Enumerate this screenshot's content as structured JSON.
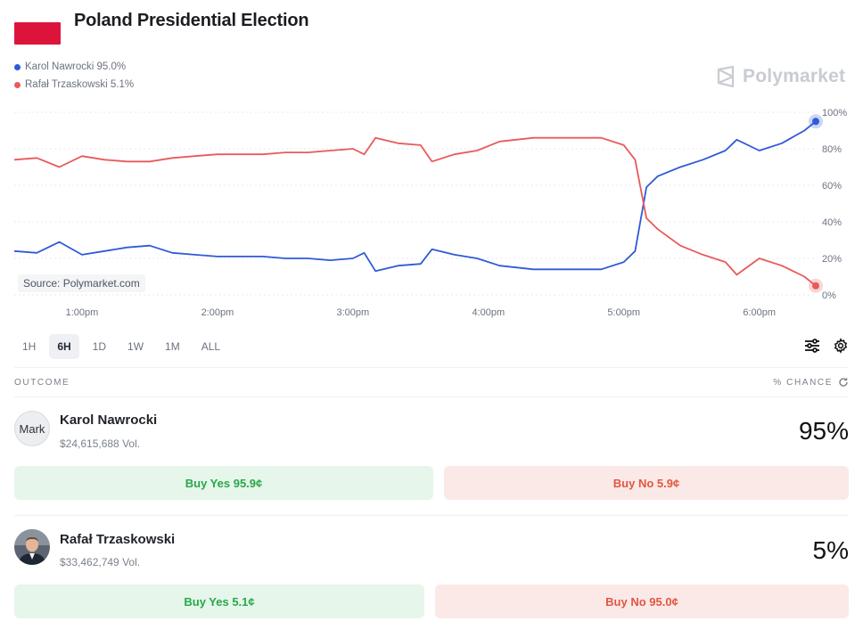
{
  "header": {
    "title": "Poland Presidential Election",
    "flag_colors": [
      "#ffffff",
      "#dc143c"
    ]
  },
  "brand": {
    "name": "Polymarket",
    "icon": "polymarket-logo-icon"
  },
  "legend": [
    {
      "label": "Karol Nawrocki 95.0%",
      "color": "#2f5ad8"
    },
    {
      "label": "Rafał Trzaskowski 5.1%",
      "color": "#e85a5a"
    }
  ],
  "chart_data": {
    "type": "line",
    "x_ticks": [
      "1:00pm",
      "2:00pm",
      "3:00pm",
      "4:00pm",
      "5:00pm",
      "6:00pm"
    ],
    "y_ticks": [
      "0%",
      "20%",
      "40%",
      "60%",
      "80%",
      "100%"
    ],
    "ylim": [
      0,
      100
    ],
    "x_range": [
      "12:30pm",
      "6:25pm"
    ],
    "source": "Source: Polymarket.com",
    "series": [
      {
        "name": "Karol Nawrocki",
        "color": "#2f5ad8",
        "x": [
          "12:30pm",
          "12:40pm",
          "12:50pm",
          "1:00pm",
          "1:10pm",
          "1:20pm",
          "1:30pm",
          "1:40pm",
          "1:50pm",
          "2:00pm",
          "2:10pm",
          "2:20pm",
          "2:30pm",
          "2:40pm",
          "2:50pm",
          "3:00pm",
          "3:05pm",
          "3:10pm",
          "3:20pm",
          "3:30pm",
          "3:35pm",
          "3:45pm",
          "3:55pm",
          "4:05pm",
          "4:20pm",
          "4:35pm",
          "4:50pm",
          "5:00pm",
          "5:05pm",
          "5:10pm",
          "5:15pm",
          "5:25pm",
          "5:35pm",
          "5:45pm",
          "5:50pm",
          "6:00pm",
          "6:10pm",
          "6:20pm",
          "6:25pm"
        ],
        "values": [
          24,
          23,
          29,
          22,
          24,
          26,
          27,
          23,
          22,
          21,
          21,
          21,
          20,
          20,
          19,
          20,
          23,
          13,
          16,
          17,
          25,
          22,
          20,
          16,
          14,
          14,
          14,
          18,
          24,
          59,
          65,
          70,
          74,
          79,
          85,
          79,
          83,
          90,
          95
        ]
      },
      {
        "name": "Rafał Trzaskowski",
        "color": "#e85a5a",
        "x": [
          "12:30pm",
          "12:40pm",
          "12:50pm",
          "1:00pm",
          "1:10pm",
          "1:20pm",
          "1:30pm",
          "1:40pm",
          "1:50pm",
          "2:00pm",
          "2:10pm",
          "2:20pm",
          "2:30pm",
          "2:40pm",
          "2:50pm",
          "3:00pm",
          "3:05pm",
          "3:10pm",
          "3:20pm",
          "3:30pm",
          "3:35pm",
          "3:45pm",
          "3:55pm",
          "4:05pm",
          "4:20pm",
          "4:35pm",
          "4:50pm",
          "5:00pm",
          "5:05pm",
          "5:10pm",
          "5:15pm",
          "5:25pm",
          "5:35pm",
          "5:45pm",
          "5:50pm",
          "6:00pm",
          "6:10pm",
          "6:20pm",
          "6:25pm"
        ],
        "values": [
          74,
          75,
          70,
          76,
          74,
          73,
          73,
          75,
          76,
          77,
          77,
          77,
          78,
          78,
          79,
          80,
          77,
          86,
          83,
          82,
          73,
          77,
          79,
          84,
          86,
          86,
          86,
          82,
          74,
          42,
          36,
          27,
          22,
          18,
          11,
          20,
          16,
          10,
          5
        ]
      }
    ]
  },
  "time_ranges": [
    {
      "label": "1H",
      "active": false
    },
    {
      "label": "6H",
      "active": true
    },
    {
      "label": "1D",
      "active": false
    },
    {
      "label": "1W",
      "active": false
    },
    {
      "label": "1M",
      "active": false
    },
    {
      "label": "ALL",
      "active": false
    }
  ],
  "toolbar": {
    "icons": [
      "sliders-icon",
      "gear-icon"
    ]
  },
  "outcomes_header": {
    "left": "OUTCOME",
    "right": "% CHANCE",
    "right_icon": "refresh-icon"
  },
  "outcomes": [
    {
      "name": "Karol Nawrocki",
      "volume": "$24,615,688 Vol.",
      "chance": "95%",
      "avatar_alt": "Mark",
      "buy_yes": "Buy Yes 95.9¢",
      "buy_no": "Buy No 5.9¢"
    },
    {
      "name": "Rafał Trzaskowski",
      "volume": "$33,462,749 Vol.",
      "chance": "5%",
      "buy_yes": "Buy Yes 5.1¢",
      "buy_no": "Buy No 95.0¢"
    }
  ]
}
